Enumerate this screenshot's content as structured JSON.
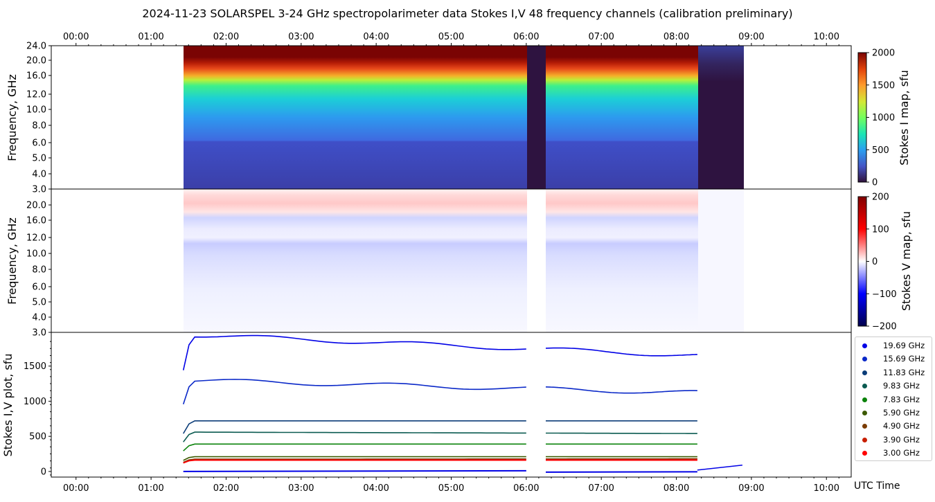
{
  "title": "2024-11-23  SOLARSPEL  3-24 GHz spectropolarimeter data   Stokes I,V   48 frequency channels   (calibration preliminary)",
  "chart_data": [
    {
      "type": "heatmap",
      "name": "Stokes I map",
      "ylabel": "Frequency, GHz",
      "colorbar_label": "Stokes I map, sfu",
      "colorbar_ticks": [
        "0",
        "500",
        "1000",
        "1500",
        "2000"
      ],
      "clim": [
        0,
        2000
      ],
      "y_ticks": [
        "3.0",
        "4.0",
        "5.0",
        "6.0",
        "8.0",
        "10.0",
        "12.0",
        "16.0",
        "20.0",
        "24.0"
      ],
      "x_ticks": [
        "00:00",
        "01:00",
        "02:00",
        "03:00",
        "04:00",
        "05:00",
        "06:00",
        "07:00",
        "08:00",
        "09:00",
        "10:00"
      ],
      "time_range_hours": [
        -0.33,
        10.33
      ],
      "data_start_hours": 1.43,
      "data_end_hours": 8.88,
      "gaps_hours": [
        [
          6.0,
          6.26
        ],
        [
          8.28,
          8.88
        ]
      ]
    },
    {
      "type": "heatmap",
      "name": "Stokes V map",
      "ylabel": "Frequency, GHz",
      "colorbar_label": "Stokes V map, sfu",
      "colorbar_ticks": [
        "200",
        "100",
        "0",
        "−100",
        "−200"
      ],
      "clim": [
        -200,
        200
      ],
      "y_ticks": [
        "3.0",
        "4.0",
        "5.0",
        "6.0",
        "8.0",
        "10.0",
        "12.0",
        "16.0",
        "20.0"
      ]
    },
    {
      "type": "scatter",
      "name": "Stokes I,V plot",
      "ylabel": "Stokes I,V plot, sfu",
      "xlabel": "UTC Time",
      "y_ticks": [
        "0",
        "500",
        "1000",
        "1500"
      ],
      "ylim": [
        -80,
        1980
      ],
      "x_ticks": [
        "00:00",
        "01:00",
        "02:00",
        "03:00",
        "04:00",
        "05:00",
        "06:00",
        "07:00",
        "08:00",
        "09:00",
        "10:00"
      ],
      "series": [
        {
          "name": "19.69 GHz",
          "color": "#0000e6",
          "level_start": 1950,
          "level_end": 1650
        },
        {
          "name": "15.69 GHz",
          "color": "#0a28c8",
          "level_start": 1300,
          "level_end": 1120
        },
        {
          "name": "11.83 GHz",
          "color": "#0a3c78",
          "level_start": 720,
          "level_end": 720
        },
        {
          "name": "9.83 GHz",
          "color": "#0a5a50",
          "level_start": 560,
          "level_end": 540
        },
        {
          "name": "7.83 GHz",
          "color": "#0a820a",
          "level_start": 390,
          "level_end": 390
        },
        {
          "name": "5.90 GHz",
          "color": "#3c5a00",
          "level_start": 210,
          "level_end": 210
        },
        {
          "name": "4.90 GHz",
          "color": "#7a3c00",
          "level_start": 175,
          "level_end": 180
        },
        {
          "name": "3.90 GHz",
          "color": "#c81e00",
          "level_start": 165,
          "level_end": 170
        },
        {
          "name": "3.00 GHz",
          "color": "#ff0000",
          "level_start": 160,
          "level_end": 160
        }
      ]
    }
  ]
}
